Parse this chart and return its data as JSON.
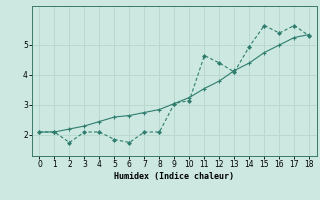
{
  "xlabel": "Humidex (Indice chaleur)",
  "bg_color": "#cce8e0",
  "grid_color": "#b8d8d0",
  "line_color": "#2e7d6e",
  "line1_x": [
    0,
    1,
    2,
    3,
    4,
    5,
    6,
    7,
    8,
    9,
    10,
    11,
    12,
    13,
    14,
    15,
    16,
    17,
    18
  ],
  "line1_y": [
    2.1,
    2.1,
    1.75,
    2.1,
    2.1,
    1.85,
    1.75,
    2.1,
    2.1,
    3.05,
    3.15,
    4.65,
    4.4,
    4.1,
    4.95,
    5.65,
    5.4,
    5.65,
    5.3
  ],
  "line2_x": [
    0,
    1,
    2,
    3,
    4,
    5,
    6,
    7,
    8,
    9,
    10,
    11,
    12,
    13,
    14,
    15,
    16,
    17,
    18
  ],
  "line2_y": [
    2.1,
    2.1,
    2.2,
    2.3,
    2.45,
    2.6,
    2.65,
    2.75,
    2.85,
    3.05,
    3.25,
    3.55,
    3.8,
    4.15,
    4.4,
    4.75,
    5.0,
    5.25,
    5.35
  ],
  "ylim": [
    1.3,
    6.3
  ],
  "xlim": [
    -0.5,
    18.5
  ],
  "yticks": [
    2,
    3,
    4,
    5
  ],
  "xticks": [
    0,
    1,
    2,
    3,
    4,
    5,
    6,
    7,
    8,
    9,
    10,
    11,
    12,
    13,
    14,
    15,
    16,
    17,
    18
  ]
}
